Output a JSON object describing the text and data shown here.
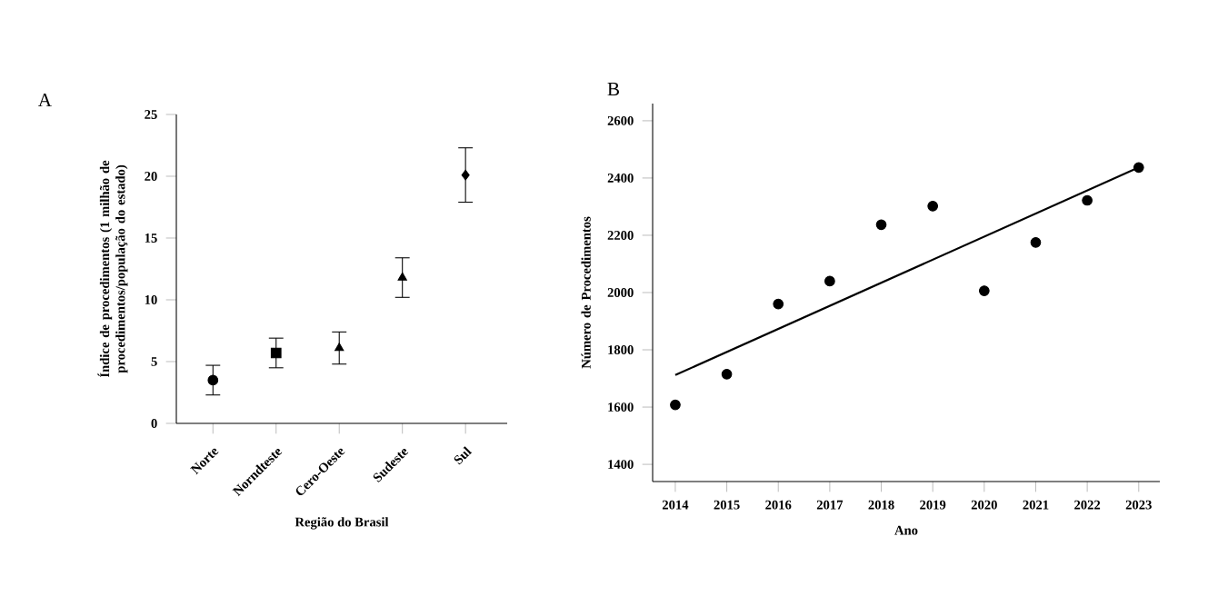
{
  "chart_data": [
    {
      "type": "scatter",
      "title": "A",
      "xlabel": "Região do Brasil",
      "ylabel": "Índice de procedimentos (1 milhão de procedimentos/população do estado)",
      "categories": [
        "Norte",
        "Norndteste",
        "Cero-Oeste",
        "Sudeste",
        "Sul"
      ],
      "ylim": [
        0,
        25
      ],
      "yticks": [
        0,
        5,
        10,
        15,
        20,
        25
      ],
      "series": [
        {
          "color": "#000000",
          "marker": "circle",
          "values": [
            3.5,
            null,
            null,
            null,
            null
          ],
          "errors": [
            1.2,
            null,
            null,
            null,
            null
          ]
        },
        {
          "color": "#000000",
          "marker": "square",
          "values": [
            null,
            5.7,
            null,
            null,
            null
          ],
          "errors": [
            null,
            1.2,
            null,
            null,
            null
          ]
        },
        {
          "color": "#000000",
          "marker": "triangle",
          "values": [
            null,
            null,
            6.1,
            null,
            null
          ],
          "errors": [
            null,
            null,
            1.3,
            null,
            null
          ]
        },
        {
          "color": "#000000",
          "marker": "triangle",
          "values": [
            null,
            null,
            null,
            11.8,
            null
          ],
          "errors": [
            null,
            null,
            null,
            1.6,
            null
          ]
        },
        {
          "color": "#000000",
          "marker": "diamond",
          "values": [
            null,
            null,
            null,
            null,
            20.1
          ],
          "errors": [
            null,
            null,
            null,
            null,
            2.2
          ]
        }
      ]
    },
    {
      "type": "scatter",
      "title": "B",
      "xlabel": "Ano",
      "ylabel": "Número de Procedimentos",
      "x": [
        2014,
        2015,
        2016,
        2017,
        2018,
        2019,
        2020,
        2021,
        2022,
        2023
      ],
      "xlim": [
        2013.56,
        2023.41
      ],
      "xticks": [
        2014,
        2015,
        2016,
        2017,
        2018,
        2019,
        2020,
        2021,
        2022,
        2023
      ],
      "ylim": [
        1340,
        2660
      ],
      "yticks": [
        1400,
        1600,
        1800,
        2000,
        2200,
        2400,
        2600
      ],
      "series": [
        {
          "color": "#000000",
          "marker": "circle",
          "values": [
            1608,
            1715,
            1960,
            2040,
            2237,
            2302,
            2006,
            2175,
            2322,
            2437
          ]
        },
        {
          "type": "line",
          "marker": "none",
          "color": "#000000",
          "x": [
            2014,
            2023
          ],
          "values": [
            1712,
            2437
          ]
        }
      ]
    }
  ]
}
